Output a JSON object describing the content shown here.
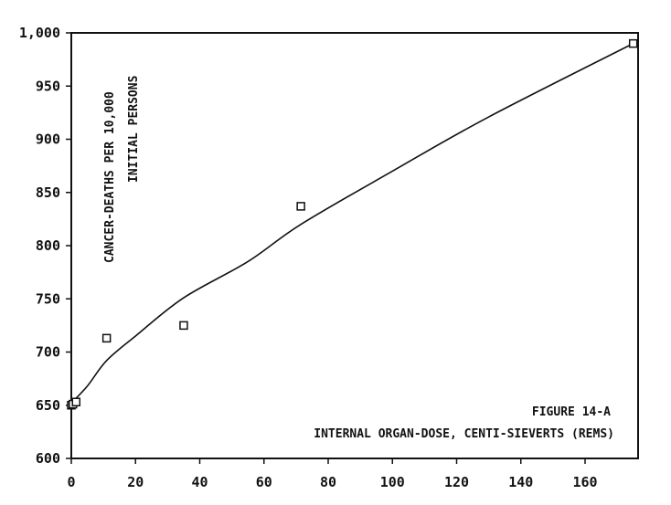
{
  "chart_data": {
    "type": "scatter",
    "title": "",
    "xlabel": "",
    "ylabel": "",
    "xlim": [
      0,
      176
    ],
    "ylim": [
      600,
      1000
    ],
    "x_ticks": [
      0,
      20,
      40,
      60,
      80,
      100,
      120,
      140,
      160
    ],
    "y_ticks": [
      600,
      650,
      700,
      750,
      800,
      850,
      900,
      950,
      1000
    ],
    "x_tick_labels": [
      "0",
      "20",
      "40",
      "60",
      "80",
      "100",
      "120",
      "140",
      "160"
    ],
    "y_tick_labels": [
      "600",
      "650",
      "700",
      "750",
      "800",
      "850",
      "900",
      "950",
      "1,000"
    ],
    "grid": false,
    "series": [
      {
        "kind": "markers",
        "marker": "open-square",
        "points": [
          {
            "x": 0,
            "y": 650
          },
          {
            "x": 0.5,
            "y": 651
          },
          {
            "x": 1.5,
            "y": 653
          },
          {
            "x": 11,
            "y": 713
          },
          {
            "x": 35,
            "y": 725
          },
          {
            "x": 71.5,
            "y": 837
          },
          {
            "x": 175,
            "y": 990
          }
        ]
      },
      {
        "kind": "fitted-curve",
        "points": [
          {
            "x": 0,
            "y": 652
          },
          {
            "x": 5,
            "y": 668
          },
          {
            "x": 11,
            "y": 692
          },
          {
            "x": 20,
            "y": 715
          },
          {
            "x": 35,
            "y": 751
          },
          {
            "x": 55,
            "y": 785
          },
          {
            "x": 71.5,
            "y": 820
          },
          {
            "x": 100,
            "y": 870
          },
          {
            "x": 130,
            "y": 921
          },
          {
            "x": 175,
            "y": 990
          }
        ]
      }
    ],
    "annotations": {
      "ylabel_line1": "CANCER-DEATHS PER 10,000",
      "ylabel_line2": "INITIAL PERSONS",
      "figure_label": "FIGURE 14-A",
      "xlabel_note": "INTERNAL ORGAN-DOSE, CENTI-SIEVERTS (REMS)"
    }
  }
}
